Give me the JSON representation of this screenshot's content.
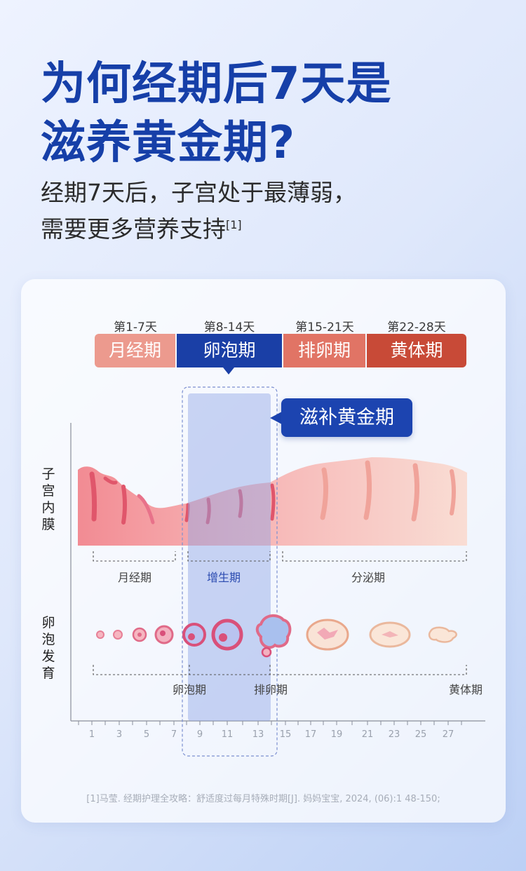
{
  "title_line1": "为何经期后7天是",
  "title_line2": "滋养黄金期?",
  "subtitle_line1": "经期7天后，子宫处于最薄弱，",
  "subtitle_line2": "需要更多营养支持",
  "subtitle_ref": "[1]",
  "phases": [
    {
      "days": "第1-7天",
      "name": "月经期",
      "color": "#ec9a8e"
    },
    {
      "days": "第8-14天",
      "name": "卵泡期",
      "color": "#1a3fa6"
    },
    {
      "days": "第15-21天",
      "name": "排卵期",
      "color": "#e17465"
    },
    {
      "days": "第22-28天",
      "name": "黄体期",
      "color": "#c84a37"
    }
  ],
  "callout": "滋补黄金期",
  "row_labels": {
    "endometrium": "子宫内膜",
    "follicle": "卵泡发育"
  },
  "endometrium_stages": [
    "月经期",
    "增生期",
    "分泌期"
  ],
  "follicle_stages": [
    "卵泡期",
    "排卵期",
    "黄体期"
  ],
  "axis_ticks": [
    "1",
    "3",
    "5",
    "7",
    "9",
    "11",
    "13",
    "15",
    "17",
    "19",
    "21",
    "23",
    "25",
    "27"
  ],
  "footnote": "[1]马莹. 经期护理全攻略：舒适度过每月特殊时期[J]. 妈妈宝宝, 2024, (06):1 48-150;",
  "colors": {
    "accent": "#163fa8",
    "highlight": "#8fa3e6",
    "tissue": "#f4a7a7"
  }
}
